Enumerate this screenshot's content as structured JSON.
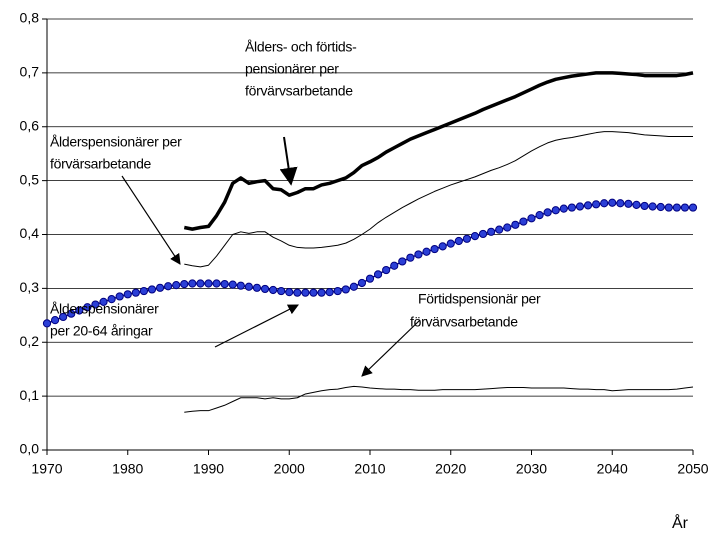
{
  "chart_data": {
    "type": "line",
    "x_label": "År",
    "x": [
      1970,
      1971,
      1972,
      1973,
      1974,
      1975,
      1976,
      1977,
      1978,
      1979,
      1980,
      1981,
      1982,
      1983,
      1984,
      1985,
      1986,
      1987,
      1988,
      1989,
      1990,
      1991,
      1992,
      1993,
      1994,
      1995,
      1996,
      1997,
      1998,
      1999,
      2000,
      2001,
      2002,
      2003,
      2004,
      2005,
      2006,
      2007,
      2008,
      2009,
      2010,
      2011,
      2012,
      2013,
      2014,
      2015,
      2016,
      2017,
      2018,
      2019,
      2020,
      2021,
      2022,
      2023,
      2024,
      2025,
      2026,
      2027,
      2028,
      2029,
      2030,
      2031,
      2032,
      2033,
      2034,
      2035,
      2036,
      2037,
      2038,
      2039,
      2040,
      2041,
      2042,
      2043,
      2044,
      2045,
      2046,
      2047,
      2048,
      2049,
      2050
    ],
    "xlim": [
      1970,
      2050
    ],
    "xticks": [
      1970,
      1980,
      1990,
      2000,
      2010,
      2020,
      2030,
      2040,
      2050
    ],
    "ylim": [
      0,
      0.8
    ],
    "yticks": [
      {
        "value": 0,
        "label": "0,0"
      },
      {
        "value": 0.1,
        "label": "0,1"
      },
      {
        "value": 0.2,
        "label": "0,2"
      },
      {
        "value": 0.3,
        "label": "0,3"
      },
      {
        "value": 0.4,
        "label": "0,4"
      },
      {
        "value": 0.5,
        "label": "0,5"
      },
      {
        "value": 0.6,
        "label": "0,6"
      },
      {
        "value": 0.7,
        "label": "0,7"
      },
      {
        "value": 0.8,
        "label": "0,8"
      }
    ],
    "grid": true,
    "series": [
      {
        "color": "#000000",
        "line_width": 3.5,
        "markers": false,
        "values": [
          null,
          null,
          null,
          null,
          null,
          null,
          null,
          null,
          null,
          null,
          null,
          null,
          null,
          null,
          null,
          null,
          null,
          0.413,
          0.41,
          0.413,
          0.415,
          0.435,
          0.46,
          0.495,
          0.505,
          0.495,
          0.498,
          0.5,
          0.485,
          0.483,
          0.473,
          0.478,
          0.485,
          0.485,
          0.492,
          0.495,
          0.5,
          0.505,
          0.515,
          0.528,
          0.535,
          0.543,
          0.553,
          0.561,
          0.569,
          0.577,
          0.583,
          0.589,
          0.595,
          0.601,
          0.607,
          0.613,
          0.619,
          0.625,
          0.632,
          0.638,
          0.644,
          0.65,
          0.656,
          0.663,
          0.67,
          0.677,
          0.683,
          0.688,
          0.691,
          0.694,
          0.696,
          0.698,
          0.7,
          0.7,
          0.7,
          0.699,
          0.698,
          0.697,
          0.695,
          0.695,
          0.695,
          0.695,
          0.695,
          0.697,
          0.7
        ]
      },
      {
        "color": "#000000",
        "line_width": 1,
        "markers": false,
        "values": [
          null,
          null,
          null,
          null,
          null,
          null,
          null,
          null,
          null,
          null,
          null,
          null,
          null,
          null,
          null,
          null,
          null,
          0.345,
          0.342,
          0.34,
          0.343,
          0.36,
          0.38,
          0.4,
          0.405,
          0.402,
          0.405,
          0.405,
          0.395,
          0.388,
          0.38,
          0.376,
          0.375,
          0.375,
          0.376,
          0.378,
          0.38,
          0.384,
          0.391,
          0.4,
          0.41,
          0.422,
          0.432,
          0.441,
          0.45,
          0.458,
          0.466,
          0.473,
          0.48,
          0.486,
          0.492,
          0.497,
          0.502,
          0.507,
          0.513,
          0.519,
          0.524,
          0.53,
          0.537,
          0.546,
          0.555,
          0.563,
          0.57,
          0.575,
          0.578,
          0.58,
          0.583,
          0.586,
          0.589,
          0.591,
          0.591,
          0.59,
          0.589,
          0.587,
          0.585,
          0.584,
          0.583,
          0.582,
          0.582,
          0.582,
          0.582
        ]
      },
      {
        "color": "#000080",
        "marker_color": "#2b3fd6",
        "line_width": 1.5,
        "markers": true,
        "values": [
          0.235,
          0.241,
          0.247,
          0.253,
          0.259,
          0.265,
          0.27,
          0.275,
          0.28,
          0.285,
          0.289,
          0.292,
          0.295,
          0.298,
          0.301,
          0.304,
          0.306,
          0.308,
          0.309,
          0.309,
          0.309,
          0.309,
          0.308,
          0.307,
          0.305,
          0.303,
          0.301,
          0.299,
          0.297,
          0.295,
          0.293,
          0.292,
          0.292,
          0.292,
          0.292,
          0.293,
          0.295,
          0.298,
          0.303,
          0.31,
          0.318,
          0.326,
          0.334,
          0.342,
          0.35,
          0.357,
          0.363,
          0.368,
          0.373,
          0.378,
          0.383,
          0.388,
          0.392,
          0.397,
          0.401,
          0.405,
          0.409,
          0.413,
          0.418,
          0.424,
          0.43,
          0.436,
          0.441,
          0.445,
          0.448,
          0.45,
          0.452,
          0.454,
          0.456,
          0.458,
          0.459,
          0.458,
          0.457,
          0.455,
          0.453,
          0.452,
          0.451,
          0.45,
          0.45,
          0.45,
          0.45
        ]
      },
      {
        "color": "#000000",
        "line_width": 1,
        "markers": false,
        "values": [
          null,
          null,
          null,
          null,
          null,
          null,
          null,
          null,
          null,
          null,
          null,
          null,
          null,
          null,
          null,
          null,
          null,
          0.07,
          0.072,
          0.073,
          0.073,
          0.078,
          0.083,
          0.09,
          0.097,
          0.097,
          0.097,
          0.095,
          0.097,
          0.095,
          0.095,
          0.097,
          0.104,
          0.107,
          0.11,
          0.112,
          0.113,
          0.116,
          0.118,
          0.117,
          0.115,
          0.114,
          0.113,
          0.113,
          0.112,
          0.112,
          0.111,
          0.111,
          0.111,
          0.112,
          0.112,
          0.112,
          0.112,
          0.112,
          0.113,
          0.114,
          0.115,
          0.116,
          0.116,
          0.116,
          0.115,
          0.115,
          0.115,
          0.115,
          0.115,
          0.114,
          0.113,
          0.113,
          0.112,
          0.112,
          0.11,
          0.111,
          0.112,
          0.112,
          0.112,
          0.112,
          0.112,
          0.112,
          0.113,
          0.115,
          0.117
        ]
      }
    ],
    "annotations": [
      {
        "lines": [
          "Ålders- och förtids-",
          "pensionärer per",
          "förvärvsarbetande"
        ]
      },
      {
        "lines": [
          "Ålderspensionärer per",
          "förvärsarbetande"
        ]
      },
      {
        "lines": [
          "Ålderspensionärer",
          "per 20-64 åringar"
        ]
      },
      {
        "lines": [
          "Förtidspensionär per",
          "förvärvsarbetande"
        ]
      }
    ]
  }
}
